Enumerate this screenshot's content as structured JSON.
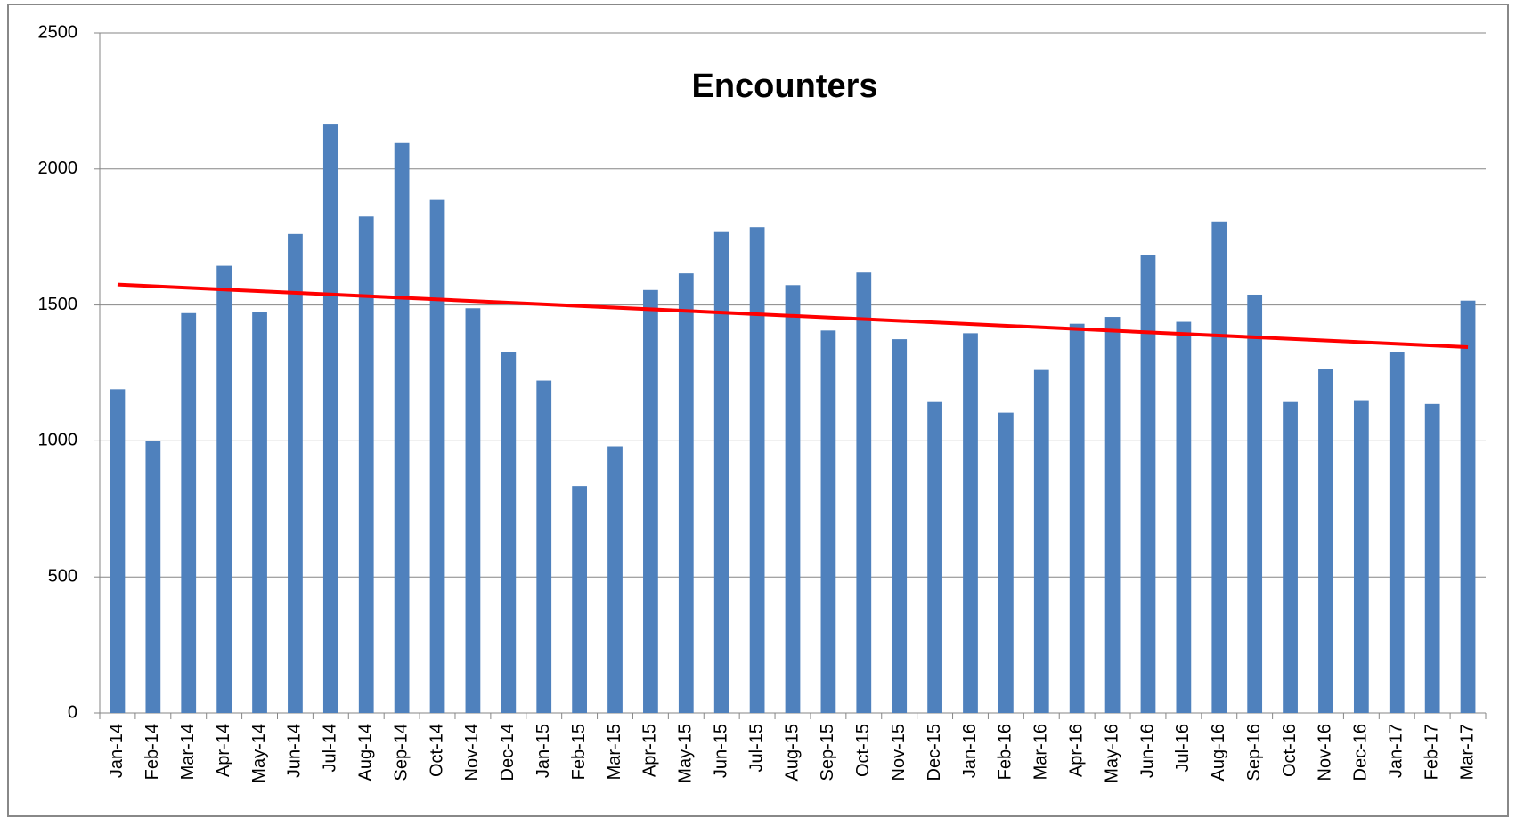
{
  "chart_data": {
    "type": "bar",
    "title": "Encounters",
    "categories": [
      "Jan-14",
      "Feb-14",
      "Mar-14",
      "Apr-14",
      "May-14",
      "Jun-14",
      "Jul-14",
      "Aug-14",
      "Sep-14",
      "Oct-14",
      "Nov-14",
      "Dec-14",
      "Jan-15",
      "Feb-15",
      "Mar-15",
      "Apr-15",
      "May-15",
      "Jun-15",
      "Jul-15",
      "Aug-15",
      "Sep-15",
      "Oct-15",
      "Nov-15",
      "Dec-15",
      "Jan-16",
      "Feb-16",
      "Mar-16",
      "Apr-16",
      "May-16",
      "Jun-16",
      "Jul-16",
      "Aug-16",
      "Sep-16",
      "Oct-16",
      "Nov-16",
      "Dec-16",
      "Jan-17",
      "Feb-17",
      "Mar-17"
    ],
    "values": [
      1190,
      1000,
      1470,
      1644,
      1474,
      1761,
      2166,
      1825,
      2095,
      1886,
      1488,
      1328,
      1222,
      834,
      980,
      1555,
      1616,
      1768,
      1786,
      1573,
      1406,
      1619,
      1374,
      1143,
      1396,
      1104,
      1261,
      1431,
      1456,
      1683,
      1438,
      1807,
      1538,
      1143,
      1264,
      1150,
      1328,
      1136,
      1516
    ],
    "color": "#4f81bd",
    "trendline": {
      "start": 1575,
      "end": 1345,
      "color": "#ff0000"
    },
    "ylim": [
      0,
      2500
    ],
    "yticks": [
      0,
      500,
      1000,
      1500,
      2000,
      2500
    ],
    "grid": true
  }
}
